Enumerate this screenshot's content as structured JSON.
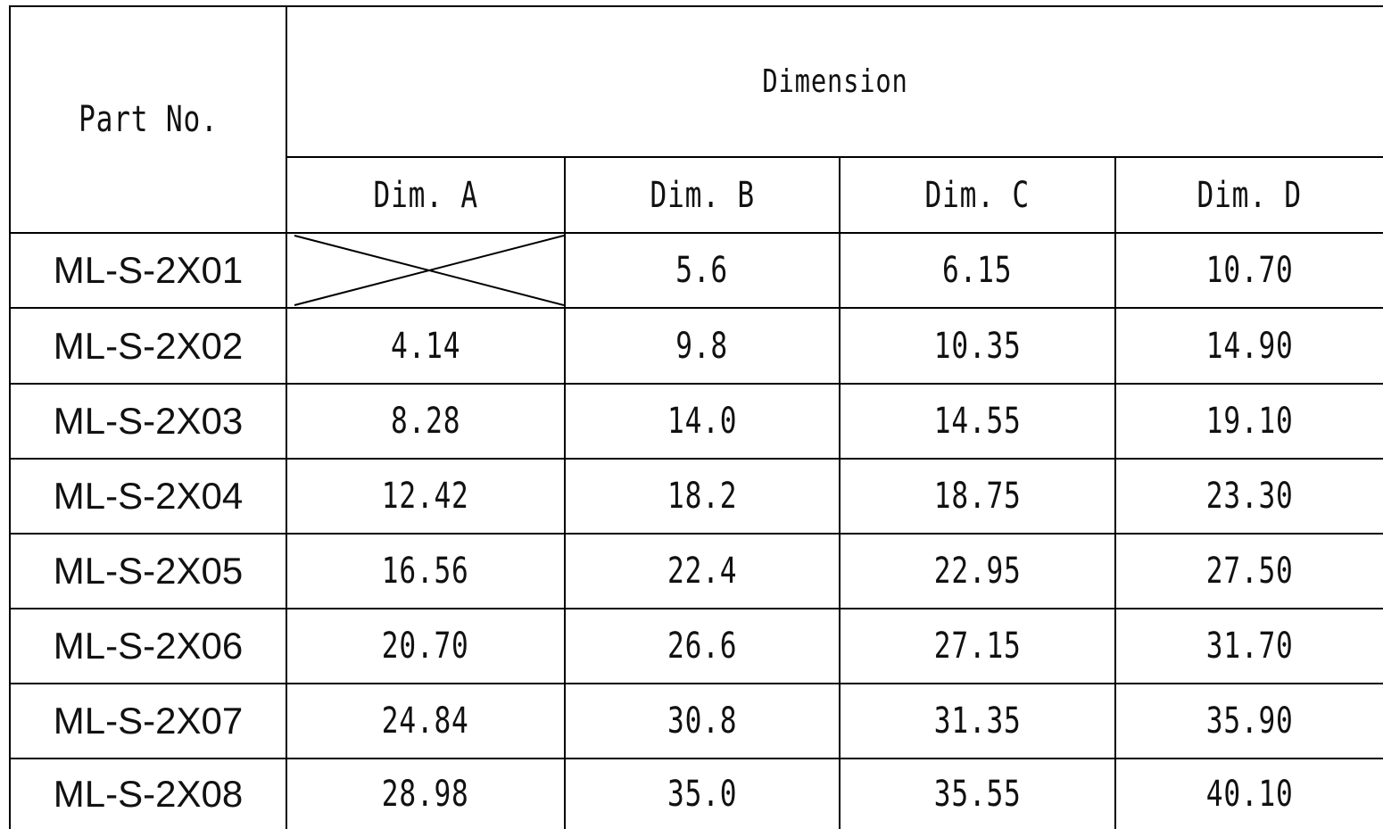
{
  "table": {
    "header_part": "Part No.",
    "header_group": "Dimension",
    "columns": [
      "Dim. A",
      "Dim. B",
      "Dim. C",
      "Dim. D"
    ],
    "rows": [
      {
        "part": "ML-S-2X01",
        "a": "",
        "b": "5.6",
        "c": "6.15",
        "d": "10.70"
      },
      {
        "part": "ML-S-2X02",
        "a": "4.14",
        "b": "9.8",
        "c": "10.35",
        "d": "14.90"
      },
      {
        "part": "ML-S-2X03",
        "a": "8.28",
        "b": "14.0",
        "c": "14.55",
        "d": "19.10"
      },
      {
        "part": "ML-S-2X04",
        "a": "12.42",
        "b": "18.2",
        "c": "18.75",
        "d": "23.30"
      },
      {
        "part": "ML-S-2X05",
        "a": "16.56",
        "b": "22.4",
        "c": "22.95",
        "d": "27.50"
      },
      {
        "part": "ML-S-2X06",
        "a": "20.70",
        "b": "26.6",
        "c": "27.15",
        "d": "31.70"
      },
      {
        "part": "ML-S-2X07",
        "a": "24.84",
        "b": "30.8",
        "c": "31.35",
        "d": "35.90"
      },
      {
        "part": "ML-S-2X08",
        "a": "28.98",
        "b": "35.0",
        "c": "35.55",
        "d": "40.10"
      }
    ]
  }
}
